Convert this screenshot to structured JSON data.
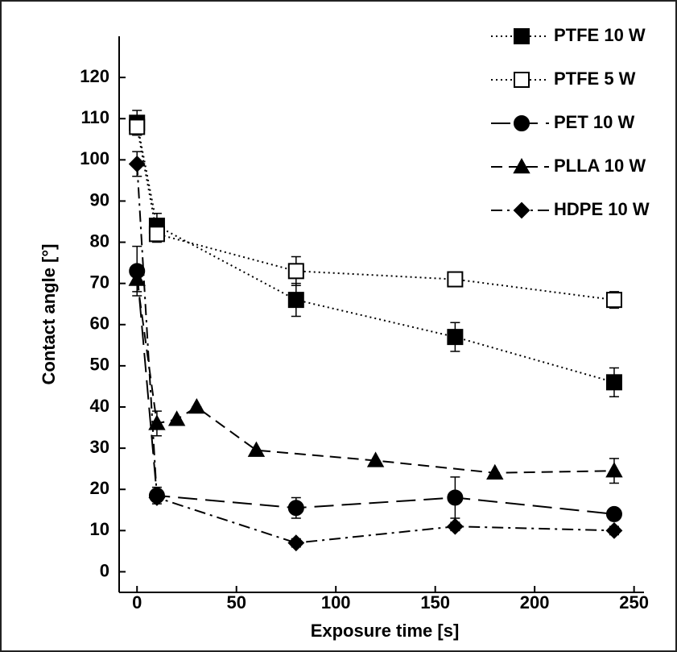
{
  "chart_data": {
    "type": "line",
    "xlabel": "Exposure time [s]",
    "ylabel": "Contact angle [°]",
    "xlim": [
      -9,
      255
    ],
    "xticks": [
      0,
      50,
      100,
      150,
      200,
      250
    ],
    "ylim": [
      -5,
      130
    ],
    "yticks": [
      0,
      10,
      20,
      30,
      40,
      50,
      60,
      70,
      80,
      90,
      100,
      110,
      120
    ],
    "color": "#000000",
    "series": [
      {
        "name": "PTFE 10 W",
        "marker": "square",
        "filled": true,
        "line_style": "dotted",
        "x": [
          0,
          10,
          80,
          160,
          240
        ],
        "values": [
          109,
          84,
          66,
          57,
          46
        ],
        "errors": [
          3,
          3,
          4,
          3.5,
          3.5
        ]
      },
      {
        "name": "PTFE 5 W",
        "marker": "square",
        "filled": false,
        "line_style": "dotted",
        "x": [
          0,
          10,
          80,
          160,
          240
        ],
        "values": [
          108,
          82,
          73,
          71,
          66
        ],
        "errors": [
          2,
          2,
          3.5,
          1,
          2
        ]
      },
      {
        "name": "PET 10 W",
        "marker": "circle",
        "filled": true,
        "line_style": "long-dash",
        "x": [
          0,
          10,
          80,
          160,
          240
        ],
        "values": [
          73,
          18.5,
          15.5,
          18,
          14
        ],
        "errors": [
          6,
          2,
          2.5,
          5,
          1
        ]
      },
      {
        "name": "PLLA 10 W",
        "marker": "triangle",
        "filled": true,
        "line_style": "dashed",
        "x": [
          0,
          10,
          20,
          30,
          60,
          120,
          180,
          240
        ],
        "values": [
          71,
          36,
          37,
          40,
          29.5,
          27,
          24,
          24.5
        ],
        "errors": [
          3,
          3,
          0,
          0,
          0,
          0,
          0,
          3
        ]
      },
      {
        "name": "HDPE 10 W",
        "marker": "diamond",
        "filled": true,
        "line_style": "dash-dot",
        "x": [
          0,
          10,
          80,
          160,
          240
        ],
        "values": [
          99,
          18,
          7,
          11,
          10
        ],
        "errors": [
          3,
          1,
          1,
          1,
          1
        ]
      }
    ]
  }
}
